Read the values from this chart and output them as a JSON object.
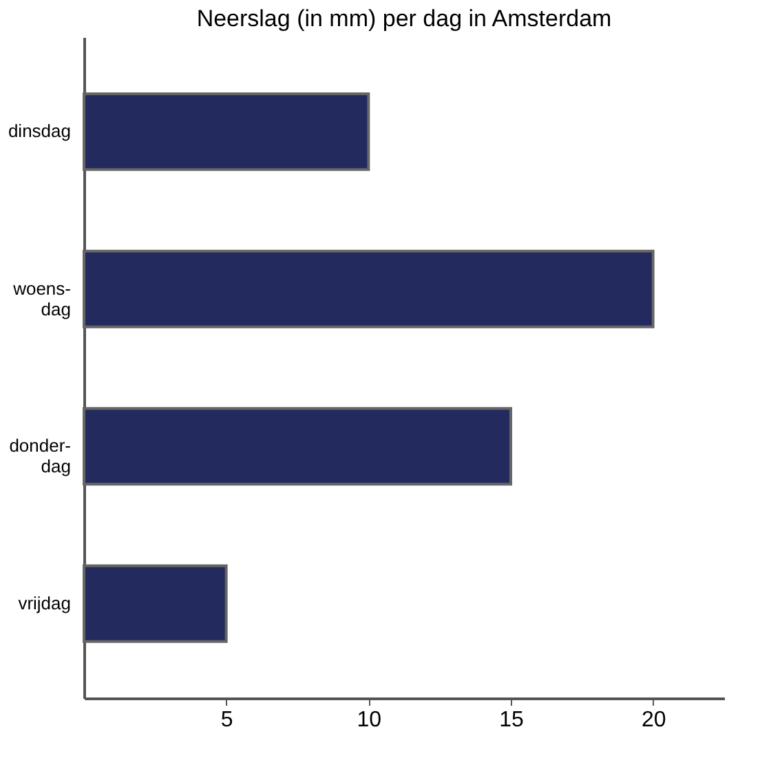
{
  "chart_data": {
    "type": "bar",
    "orientation": "horizontal",
    "title": "Neerslag (in mm) per dag in Amsterdam",
    "categories": [
      "dinsdag",
      "woens-\ndag",
      "donder-\ndag",
      "vrijdag"
    ],
    "values": [
      10,
      20,
      15,
      5
    ],
    "color": "#232a5e",
    "xlim": [
      0,
      22.5
    ],
    "xticks": [
      5,
      10,
      15,
      20
    ],
    "grid": false
  }
}
